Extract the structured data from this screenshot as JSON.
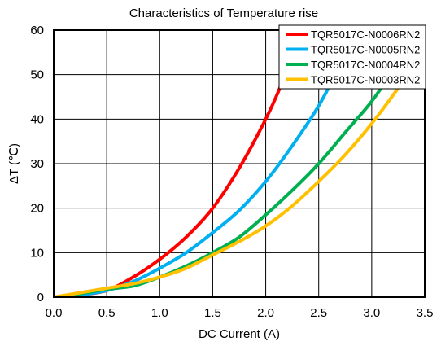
{
  "chart_data": {
    "type": "line",
    "title": "Characteristics of Temperature rise",
    "xlabel": "DC Current (A)",
    "ylabel": "ΔT (℃)",
    "xlim": [
      0.0,
      3.5
    ],
    "ylim": [
      0,
      60
    ],
    "x_ticks": [
      "0.0",
      "0.5",
      "1.0",
      "1.5",
      "2.0",
      "2.5",
      "3.0",
      "3.5"
    ],
    "y_ticks": [
      "0",
      "10",
      "20",
      "30",
      "40",
      "50",
      "60"
    ],
    "grid": true,
    "legend_position": "top-right",
    "series": [
      {
        "name": "TQR5017C-N0006RN2",
        "color": "#ff0000",
        "points": [
          [
            0.0,
            0
          ],
          [
            0.25,
            0.5
          ],
          [
            0.5,
            1.5
          ],
          [
            0.75,
            4.5
          ],
          [
            1.0,
            8.5
          ],
          [
            1.25,
            13.5
          ],
          [
            1.5,
            20
          ],
          [
            1.75,
            29
          ],
          [
            2.0,
            40
          ],
          [
            2.15,
            48
          ],
          [
            2.3,
            58
          ]
        ]
      },
      {
        "name": "TQR5017C-N0005RN2",
        "color": "#00b0f0",
        "points": [
          [
            0.0,
            0
          ],
          [
            0.25,
            0.5
          ],
          [
            0.5,
            1.5
          ],
          [
            0.75,
            3.5
          ],
          [
            1.0,
            6.5
          ],
          [
            1.25,
            10
          ],
          [
            1.5,
            14.5
          ],
          [
            1.75,
            19.5
          ],
          [
            2.0,
            26
          ],
          [
            2.25,
            34
          ],
          [
            2.5,
            43
          ],
          [
            2.7,
            52
          ],
          [
            2.85,
            58
          ]
        ]
      },
      {
        "name": "TQR5017C-N0004RN2",
        "color": "#00b050",
        "points": [
          [
            0.0,
            0
          ],
          [
            0.25,
            0.8
          ],
          [
            0.5,
            1.8
          ],
          [
            0.75,
            2.5
          ],
          [
            1.0,
            4.5
          ],
          [
            1.25,
            7
          ],
          [
            1.5,
            10
          ],
          [
            1.75,
            13.5
          ],
          [
            2.0,
            18.5
          ],
          [
            2.25,
            24
          ],
          [
            2.5,
            30
          ],
          [
            2.75,
            37
          ],
          [
            3.0,
            44
          ],
          [
            3.2,
            51
          ],
          [
            3.35,
            57
          ]
        ]
      },
      {
        "name": "TQR5017C-N0003RN2",
        "color": "#ffc000",
        "points": [
          [
            0.0,
            0
          ],
          [
            0.25,
            1
          ],
          [
            0.5,
            2
          ],
          [
            0.75,
            3
          ],
          [
            1.0,
            4.5
          ],
          [
            1.25,
            6.5
          ],
          [
            1.5,
            9.5
          ],
          [
            1.75,
            12.5
          ],
          [
            2.0,
            16
          ],
          [
            2.25,
            20.5
          ],
          [
            2.5,
            26
          ],
          [
            2.75,
            32
          ],
          [
            3.0,
            39
          ],
          [
            3.25,
            47
          ],
          [
            3.45,
            54
          ]
        ]
      }
    ]
  }
}
